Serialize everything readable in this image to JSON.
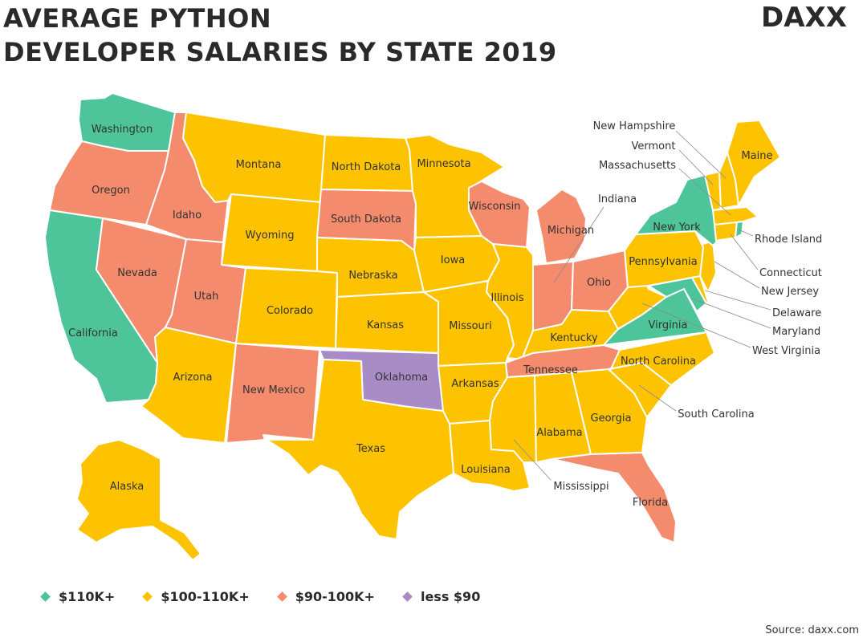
{
  "title": {
    "line1": "AVERAGE PYTHON",
    "line2": "DEVELOPER SALARIES BY STATE 2019"
  },
  "logo": {
    "text": "DAXX"
  },
  "legend": [
    {
      "label": "$110K+",
      "color": "#4ec49a"
    },
    {
      "label": "$100-110K+",
      "color": "#fdc300"
    },
    {
      "label": "$90-100K+",
      "color": "#f48b6c"
    },
    {
      "label": "less $90",
      "color": "#a98cc6"
    }
  ],
  "source": "Source: daxx.com",
  "states": [
    {
      "name": "Washington",
      "tier": "$110K+"
    },
    {
      "name": "Oregon",
      "tier": "$90-100K+"
    },
    {
      "name": "California",
      "tier": "$110K+"
    },
    {
      "name": "Nevada",
      "tier": "$90-100K+"
    },
    {
      "name": "Idaho",
      "tier": "$90-100K+"
    },
    {
      "name": "Montana",
      "tier": "$100-110K+"
    },
    {
      "name": "Wyoming",
      "tier": "$100-110K+"
    },
    {
      "name": "Utah",
      "tier": "$90-100K+"
    },
    {
      "name": "Arizona",
      "tier": "$100-110K+"
    },
    {
      "name": "Colorado",
      "tier": "$100-110K+"
    },
    {
      "name": "New Mexico",
      "tier": "$90-100K+"
    },
    {
      "name": "North Dakota",
      "tier": "$100-110K+"
    },
    {
      "name": "South Dakota",
      "tier": "$90-100K+"
    },
    {
      "name": "Nebraska",
      "tier": "$100-110K+"
    },
    {
      "name": "Kansas",
      "tier": "$100-110K+"
    },
    {
      "name": "Oklahoma",
      "tier": "less $90"
    },
    {
      "name": "Texas",
      "tier": "$100-110K+"
    },
    {
      "name": "Minnesota",
      "tier": "$100-110K+"
    },
    {
      "name": "Iowa",
      "tier": "$100-110K+"
    },
    {
      "name": "Missouri",
      "tier": "$100-110K+"
    },
    {
      "name": "Arkansas",
      "tier": "$100-110K+"
    },
    {
      "name": "Louisiana",
      "tier": "$100-110K+"
    },
    {
      "name": "Wisconsin",
      "tier": "$90-100K+"
    },
    {
      "name": "Illinois",
      "tier": "$100-110K+"
    },
    {
      "name": "Michigan",
      "tier": "$90-100K+"
    },
    {
      "name": "Indiana",
      "tier": "$90-100K+"
    },
    {
      "name": "Ohio",
      "tier": "$90-100K+"
    },
    {
      "name": "Kentucky",
      "tier": "$100-110K+"
    },
    {
      "name": "Tennessee",
      "tier": "$90-100K+"
    },
    {
      "name": "Mississippi",
      "tier": "$100-110K+"
    },
    {
      "name": "Alabama",
      "tier": "$100-110K+"
    },
    {
      "name": "Georgia",
      "tier": "$100-110K+"
    },
    {
      "name": "Florida",
      "tier": "$90-100K+"
    },
    {
      "name": "South Carolina",
      "tier": "$100-110K+"
    },
    {
      "name": "North Carolina",
      "tier": "$100-110K+"
    },
    {
      "name": "Virginia",
      "tier": "$110K+"
    },
    {
      "name": "West Virginia",
      "tier": "$100-110K+"
    },
    {
      "name": "Maryland",
      "tier": "$110K+"
    },
    {
      "name": "Delaware",
      "tier": "$100-110K+"
    },
    {
      "name": "New Jersey",
      "tier": "$100-110K+"
    },
    {
      "name": "Pennsylvania",
      "tier": "$100-110K+"
    },
    {
      "name": "New York",
      "tier": "$110K+"
    },
    {
      "name": "Connecticut",
      "tier": "$100-110K+"
    },
    {
      "name": "Rhode Island",
      "tier": "$110K+"
    },
    {
      "name": "Massachusetts",
      "tier": "$100-110K+"
    },
    {
      "name": "Vermont",
      "tier": "$100-110K+"
    },
    {
      "name": "New Hampshire",
      "tier": "$100-110K+"
    },
    {
      "name": "Maine",
      "tier": "$100-110K+"
    },
    {
      "name": "Alaska",
      "tier": "$100-110K+"
    }
  ]
}
